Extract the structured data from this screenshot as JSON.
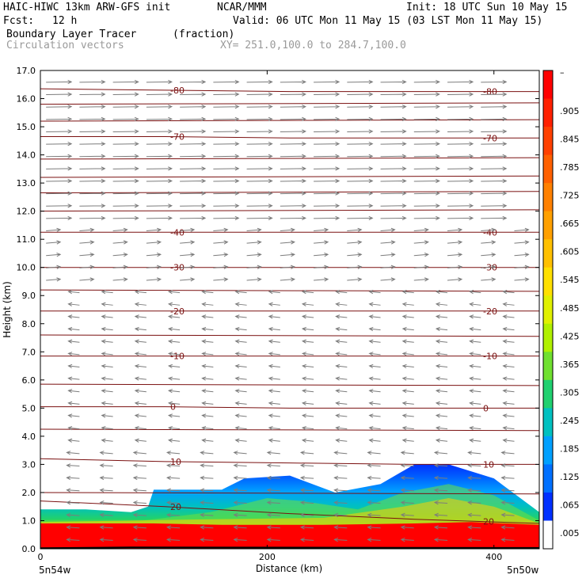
{
  "header": {
    "model": "HAIC-HIWC 13km ARW-GFS init",
    "org": "NCAR/MMM",
    "init": "Init: 18 UTC Sun 10 May 15",
    "fcst_label": "Fcst:",
    "fcst_value": "12 h",
    "valid": "Valid: 06 UTC Mon 11 May 15 (03 LST Mon 11 May 15)",
    "field_name": "Boundary Layer Tracer",
    "field_units": "(fraction)",
    "vector_label": "Circulation vectors",
    "xy_label": "XY= 251.0,100.0 to 284.7,100.0"
  },
  "chart_data": {
    "type": "heatmap",
    "xlabel": "Distance (km)",
    "ylabel": "Height (km)",
    "xlim": [
      0,
      440
    ],
    "ylim": [
      0,
      17
    ],
    "x_ticks": [
      0,
      200,
      400
    ],
    "y_ticks": [
      "0.0",
      "1.0",
      "2.0",
      "3.0",
      "4.0",
      "5.0",
      "6.0",
      "7.0",
      "8.0",
      "9.0",
      "10.0",
      "11.0",
      "12.0",
      "13.0",
      "14.0",
      "15.0",
      "16.0",
      "17.0"
    ],
    "x_start_label": "5n54w",
    "x_end_label": "5n50w",
    "colorbar": {
      "labels": [
        "–",
        ".905",
        ".845",
        ".785",
        ".725",
        ".665",
        ".605",
        ".545",
        ".485",
        ".425",
        ".365",
        ".305",
        ".245",
        ".185",
        ".125",
        ".065",
        ".005"
      ],
      "colors": [
        "#ff0000",
        "#ff2000",
        "#ff4000",
        "#ff6000",
        "#ff8000",
        "#ffa000",
        "#ffc000",
        "#ffe000",
        "#e0f000",
        "#b0f000",
        "#70e030",
        "#20d070",
        "#00c0c0",
        "#00a0ff",
        "#0070ff",
        "#0030ff",
        "#ffffff"
      ]
    },
    "tracer_top_km": {
      "x": [
        0,
        40,
        80,
        95,
        100,
        160,
        180,
        220,
        260,
        300,
        330,
        360,
        400,
        440
      ],
      "y": [
        1.4,
        1.4,
        1.3,
        1.5,
        2.1,
        2.1,
        2.5,
        2.6,
        2.0,
        2.3,
        3.0,
        3.0,
        2.5,
        1.3
      ]
    },
    "temperature_contours": [
      {
        "label": "10",
        "y_km": [
          3.2,
          3.1,
          3.05,
          3.0,
          3.0
        ]
      },
      {
        "label": "20",
        "y_km": [
          1.7,
          1.5,
          1.25,
          1.05,
          0.9
        ]
      },
      {
        "label": "0",
        "y_km": [
          5.05,
          5.05,
          5.0,
          5.0,
          5.0
        ]
      },
      {
        "label": "-10",
        "y_km": [
          6.85,
          6.85,
          6.85,
          6.85,
          6.85
        ]
      },
      {
        "label": "-20",
        "y_km": [
          8.45,
          8.45,
          8.45,
          8.45,
          8.45
        ]
      },
      {
        "label": "-30",
        "y_km": [
          10.0,
          10.0,
          10.0,
          10.0,
          10.0
        ]
      },
      {
        "label": "-40",
        "y_km": [
          11.25,
          11.25,
          11.25,
          11.25,
          11.25
        ]
      },
      {
        "label": "-70",
        "y_km": [
          14.65,
          14.65,
          14.6,
          14.6,
          14.6
        ]
      },
      {
        "label": "-80",
        "y_km": [
          16.35,
          16.3,
          16.25,
          16.25,
          16.25
        ]
      }
    ],
    "grid": false
  }
}
